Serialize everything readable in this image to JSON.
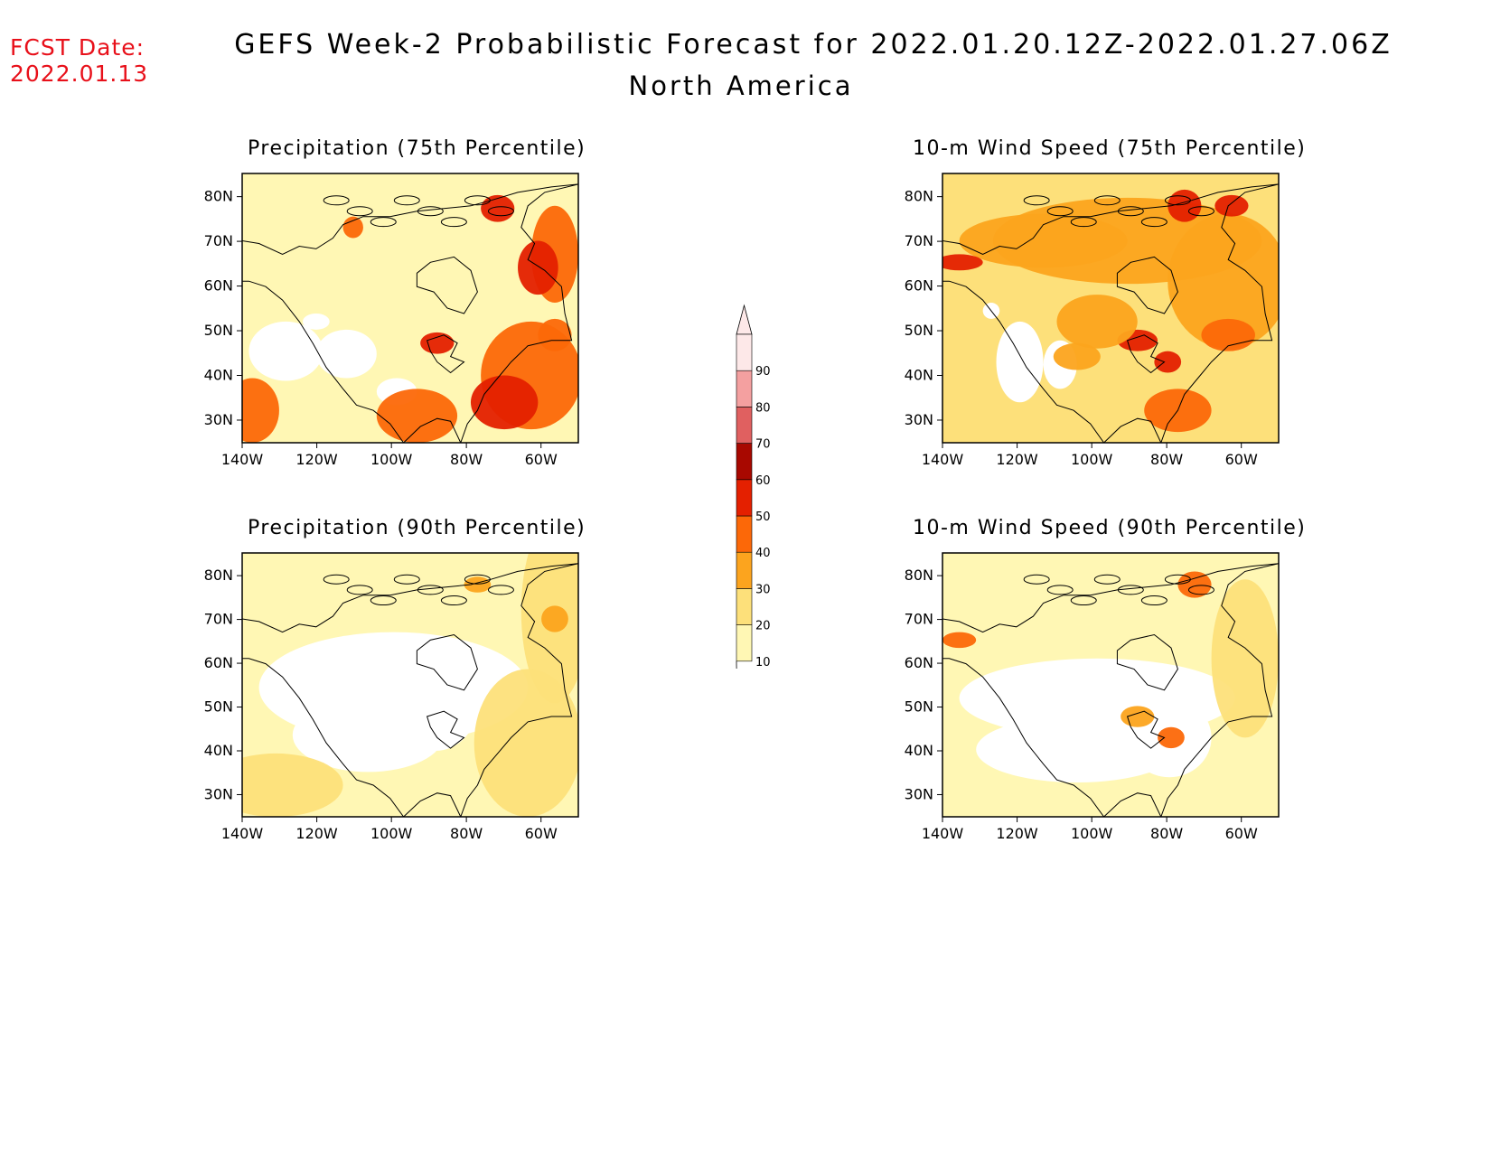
{
  "header": {
    "fcst_label": "FCST Date:",
    "fcst_date": "2022.01.13",
    "title": "GEFS Week-2 Probabilistic Forecast for 2022.01.20.12Z-2022.01.27.06Z",
    "subtitle": "North America"
  },
  "panels": [
    {
      "title": "Precipitation (75th Percentile)",
      "variable": "precip",
      "level": "high"
    },
    {
      "title": "10-m Wind Speed (75th Percentile)",
      "variable": "wind",
      "level": "high"
    },
    {
      "title": "Precipitation (90th Percentile)",
      "variable": "precip",
      "level": "low"
    },
    {
      "title": "10-m Wind Speed (90th Percentile)",
      "variable": "wind",
      "level": "low"
    }
  ],
  "axes": {
    "lat_labels": [
      "80N",
      "70N",
      "60N",
      "50N",
      "40N",
      "30N"
    ],
    "lon_labels": [
      "140W",
      "120W",
      "100W",
      "80W",
      "60W"
    ]
  },
  "colorbar": {
    "levels": [
      "10",
      "20",
      "30",
      "40",
      "50",
      "60",
      "70",
      "80",
      "90"
    ],
    "colors": [
      "#fff7b4",
      "#fde07a",
      "#fca41e",
      "#fc6808",
      "#e42000",
      "#a80800",
      "#e06060",
      "#f4a0a0",
      "#fde8e8"
    ]
  }
}
